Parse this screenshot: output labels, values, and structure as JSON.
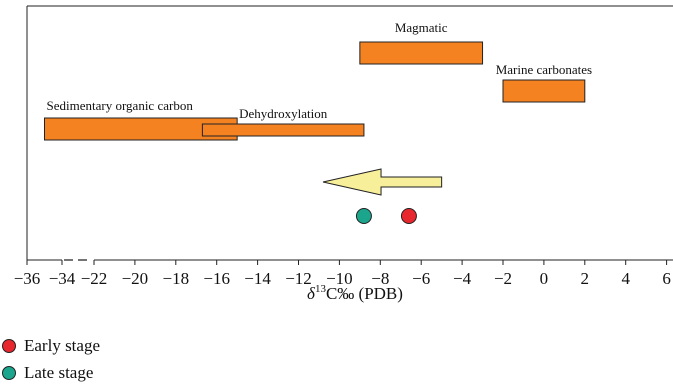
{
  "chart_data": {
    "type": "range-bar",
    "xlabel": "δ13C‰ (PDB)",
    "xlabel_parts": {
      "prefix": "δ",
      "sup": "13",
      "rest": "C‰ (PDB)"
    },
    "axis_break": "between -34 and -22",
    "ticks": [
      {
        "label": "−36",
        "value": -36
      },
      {
        "label": "−34",
        "value": -34
      },
      {
        "label": "−22",
        "value": -22
      },
      {
        "label": "−20",
        "value": -20
      },
      {
        "label": "−18",
        "value": -18
      },
      {
        "label": "−16",
        "value": -16
      },
      {
        "label": "−14",
        "value": -14
      },
      {
        "label": "−12",
        "value": -12
      },
      {
        "label": "−10",
        "value": -10
      },
      {
        "label": "−8",
        "value": -8
      },
      {
        "label": "−6",
        "value": -6
      },
      {
        "label": "−4",
        "value": -4
      },
      {
        "label": "−2",
        "value": -2
      },
      {
        "label": "0",
        "value": 0
      },
      {
        "label": "2",
        "value": 2
      },
      {
        "label": "4",
        "value": 4
      },
      {
        "label": "6",
        "value": 6
      }
    ],
    "ranges": [
      {
        "label": "Magmatic",
        "start": -9.0,
        "end": -3.0,
        "color": "#f58220",
        "row": 1
      },
      {
        "label": "Marine carbonates",
        "start": -2.0,
        "end": 2.0,
        "color": "#f58220",
        "row": 2
      },
      {
        "label": "Sedimentary organic carbon",
        "start": -35.0,
        "end": -15.0,
        "color": "#f58220",
        "row": 3
      },
      {
        "label": "Dehydroxylation",
        "start": -16.7,
        "end": -8.8,
        "color": "#f58220",
        "row": 3.5
      }
    ],
    "arrow": {
      "from": -5.0,
      "to": -10.8,
      "color": "#f7ef9a",
      "direction": "left"
    },
    "points": [
      {
        "series": "Late stage",
        "x": -8.8,
        "color": "#1aa58c"
      },
      {
        "series": "Early stage",
        "x": -6.6,
        "color": "#e8262d"
      }
    ]
  },
  "legend": [
    {
      "label": "Early stage",
      "color": "#e8262d"
    },
    {
      "label": "Late stage",
      "color": "#1aa58c"
    }
  ]
}
